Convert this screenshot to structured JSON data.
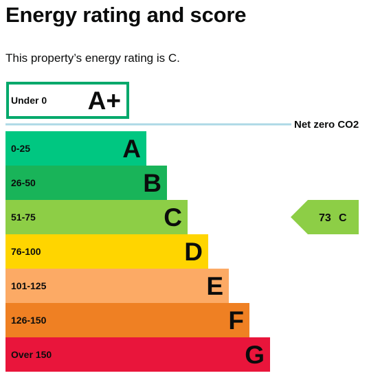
{
  "page": {
    "title": "Energy rating and score",
    "subtitle": "This property’s energy rating is C."
  },
  "bands": [
    {
      "range": "Under 0",
      "letter": "A+",
      "color": "#ffffff",
      "border": "#00a86b",
      "style": "outlined"
    },
    {
      "range": "0-25",
      "letter": "A",
      "color": "#00c781"
    },
    {
      "range": "26-50",
      "letter": "B",
      "color": "#19b459"
    },
    {
      "range": "51-75",
      "letter": "C",
      "color": "#8dce46"
    },
    {
      "range": "76-100",
      "letter": "D",
      "color": "#ffd500"
    },
    {
      "range": "101-125",
      "letter": "E",
      "color": "#fcaa65"
    },
    {
      "range": "126-150",
      "letter": "F",
      "color": "#ef8023"
    },
    {
      "range": "Over 150",
      "letter": "G",
      "color": "#e9153b"
    }
  ],
  "net_zero": {
    "label": "Net zero CO2",
    "line_color": "#add8e6"
  },
  "current": {
    "score": "73",
    "letter": "C",
    "band_index": 3,
    "color": "#8dce46"
  }
}
